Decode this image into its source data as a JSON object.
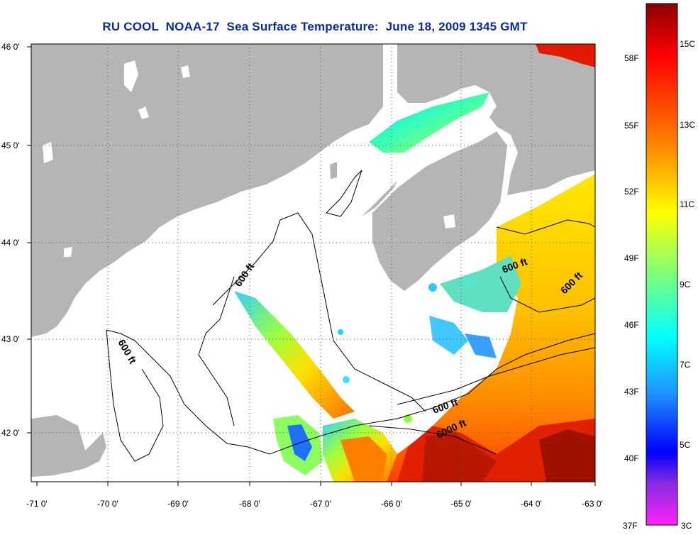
{
  "title": "RU COOL  NOAA-17  Sea Surface Temperature:  June 18, 2009 1345 GMT",
  "axes": {
    "lon_ticks": [
      "-71 0'",
      "-70 0'",
      "-69 0'",
      "-68 0'",
      "-67 0'",
      "-66 0'",
      "-65 0'",
      "-64 0'",
      "-63 0'"
    ],
    "lat_ticks": [
      "46 0'",
      "45 0'",
      "44 0'",
      "43 0'",
      "42 0'"
    ]
  },
  "contours": {
    "labels": [
      "600 ft",
      "600 ft",
      "600 ft",
      "600 ft",
      "600 ft",
      "6000 ft"
    ]
  },
  "colorbar": {
    "fahrenheit_labels": [
      "58F",
      "55F",
      "52F",
      "49F",
      "46F",
      "43F",
      "40F",
      "37F"
    ],
    "celsius_labels": [
      "15C",
      "13C",
      "11C",
      "9C",
      "7C",
      "5C",
      "3C"
    ],
    "colors_top_to_bottom": [
      "#8b0000",
      "#ff0000",
      "#ff8c00",
      "#ffff00",
      "#90ee40",
      "#00ffff",
      "#1e90ff",
      "#0000ff",
      "#8a2be2",
      "#ff00ff"
    ]
  },
  "colors": {
    "land": "#b5b5b5",
    "water_nodata": "#ffffff",
    "title": "#0a2aa8",
    "grid": "#555555"
  }
}
